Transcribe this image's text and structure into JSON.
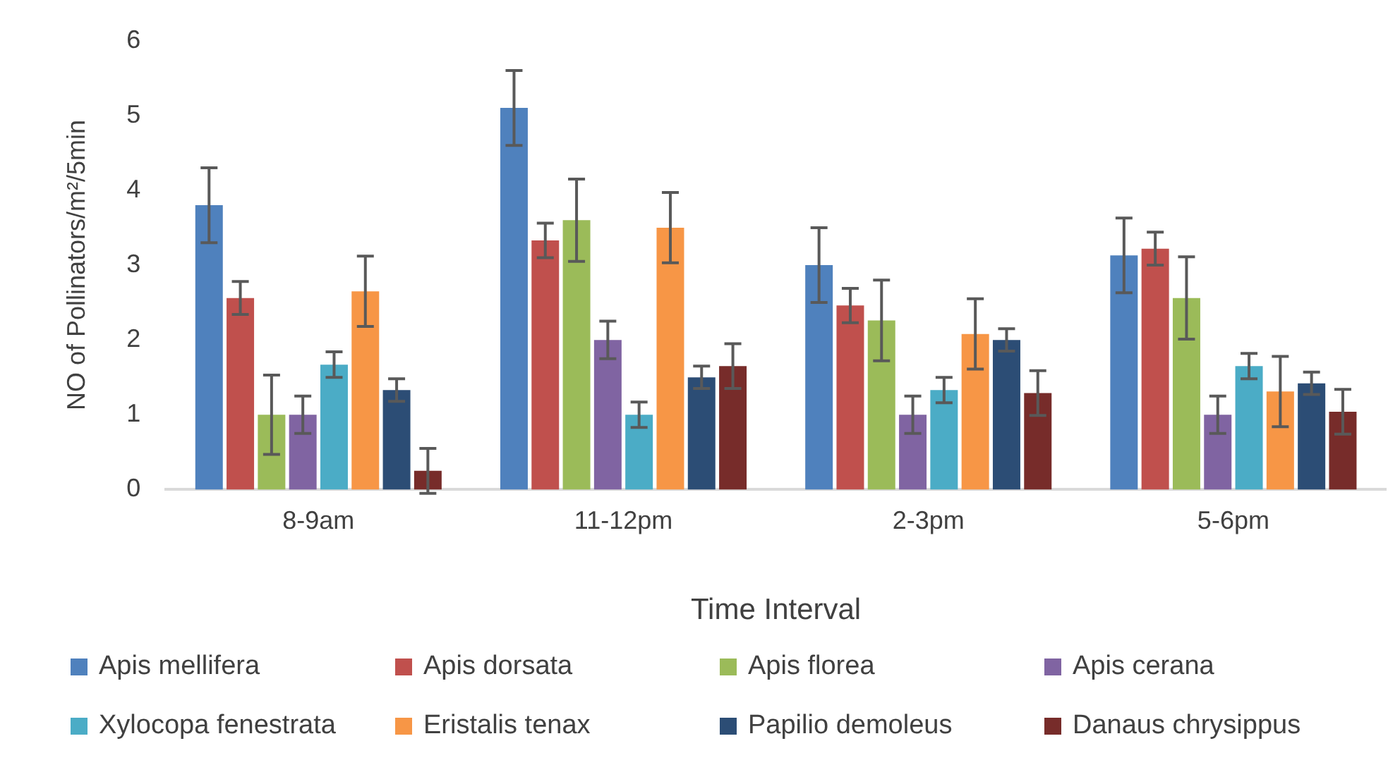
{
  "chart_data": {
    "type": "bar",
    "xlabel": "Time Interval",
    "ylabel": "NO of Pollinators/m²/5min",
    "categories": [
      "8-9am",
      "11-12pm",
      "2-3pm",
      "5-6pm"
    ],
    "ylim": [
      0,
      6
    ],
    "yticks": [
      0,
      1,
      2,
      3,
      4,
      5,
      6
    ],
    "grid": false,
    "legend": "bottom",
    "series": [
      {
        "name": "Apis mellifera",
        "color": "#4f81bd",
        "values": [
          3.8,
          5.1,
          3.0,
          3.13
        ],
        "errors": [
          0.5,
          0.5,
          0.5,
          0.5
        ]
      },
      {
        "name": "Apis dorsata",
        "color": "#c0504d",
        "values": [
          2.56,
          3.33,
          2.46,
          3.22
        ],
        "errors": [
          0.22,
          0.23,
          0.23,
          0.22
        ]
      },
      {
        "name": "Apis florea",
        "color": "#9bbb59",
        "values": [
          1.0,
          3.6,
          2.26,
          2.56
        ],
        "errors": [
          0.53,
          0.55,
          0.54,
          0.55
        ]
      },
      {
        "name": "Apis cerana",
        "color": "#8064a2",
        "values": [
          1.0,
          2.0,
          1.0,
          1.0
        ],
        "errors": [
          0.25,
          0.25,
          0.25,
          0.25
        ]
      },
      {
        "name": "Xylocopa fenestrata",
        "color": "#4bacc6",
        "values": [
          1.67,
          1.0,
          1.33,
          1.65
        ],
        "errors": [
          0.17,
          0.17,
          0.17,
          0.17
        ]
      },
      {
        "name": "Eristalis tenax",
        "color": "#f79646",
        "values": [
          2.65,
          3.5,
          2.08,
          1.31
        ],
        "errors": [
          0.47,
          0.47,
          0.47,
          0.47
        ]
      },
      {
        "name": "Papilio demoleus",
        "color": "#2c4d75",
        "values": [
          1.33,
          1.5,
          2.0,
          1.42
        ],
        "errors": [
          0.15,
          0.15,
          0.15,
          0.15
        ]
      },
      {
        "name": "Danaus chrysippus",
        "color": "#772c2a",
        "values": [
          0.25,
          1.65,
          1.29,
          1.04
        ],
        "errors": [
          0.3,
          0.3,
          0.3,
          0.3
        ]
      }
    ]
  }
}
